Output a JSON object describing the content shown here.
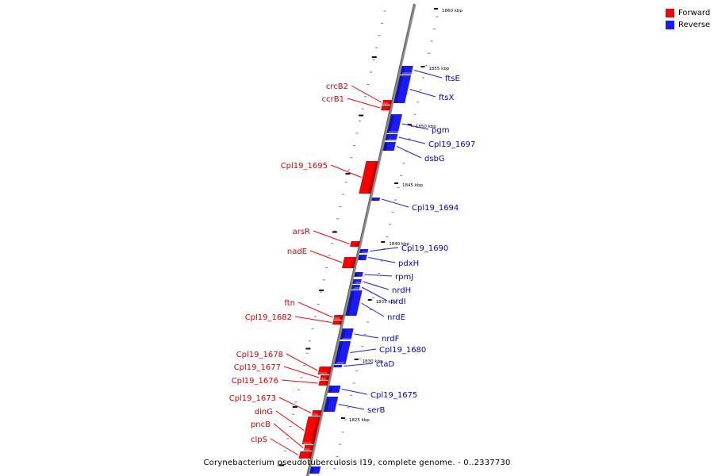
{
  "legend": {
    "forward_label": "Forward",
    "reverse_label": "Reverse",
    "forward_color": "#ff0000",
    "reverse_color": "#1a1aff"
  },
  "caption": "Corynebacterium pseudotuberculosis I19, complete genome. - 0..2337730",
  "scale_labels": [
    "1860 kbp",
    "1855 kbp",
    "1850 kbp",
    "1845 kbp",
    "1840 kbp",
    "1835 kbp",
    "1830 kbp",
    "1825 kbp"
  ],
  "forward_genes": [
    "crcB2",
    "ccrB1",
    "Cpl19_1695",
    "arsR",
    "nadE",
    "ftn",
    "Cpl19_1682",
    "Cpl19_1678",
    "Cpl19_1677",
    "Cpl19_1676",
    "Cpl19_1673",
    "dinG",
    "pncB",
    "clpS"
  ],
  "reverse_genes": [
    "ftsE",
    "ftsX",
    "pgm",
    "Cpl19_1697",
    "dsbG",
    "Cpl19_1694",
    "Cpl19_1690",
    "pdxH",
    "rpmJ",
    "nrdH",
    "nrdI",
    "nrdE",
    "nrdF",
    "Cpl19_1680",
    "ctaD",
    "Cpl19_1675",
    "serB"
  ]
}
